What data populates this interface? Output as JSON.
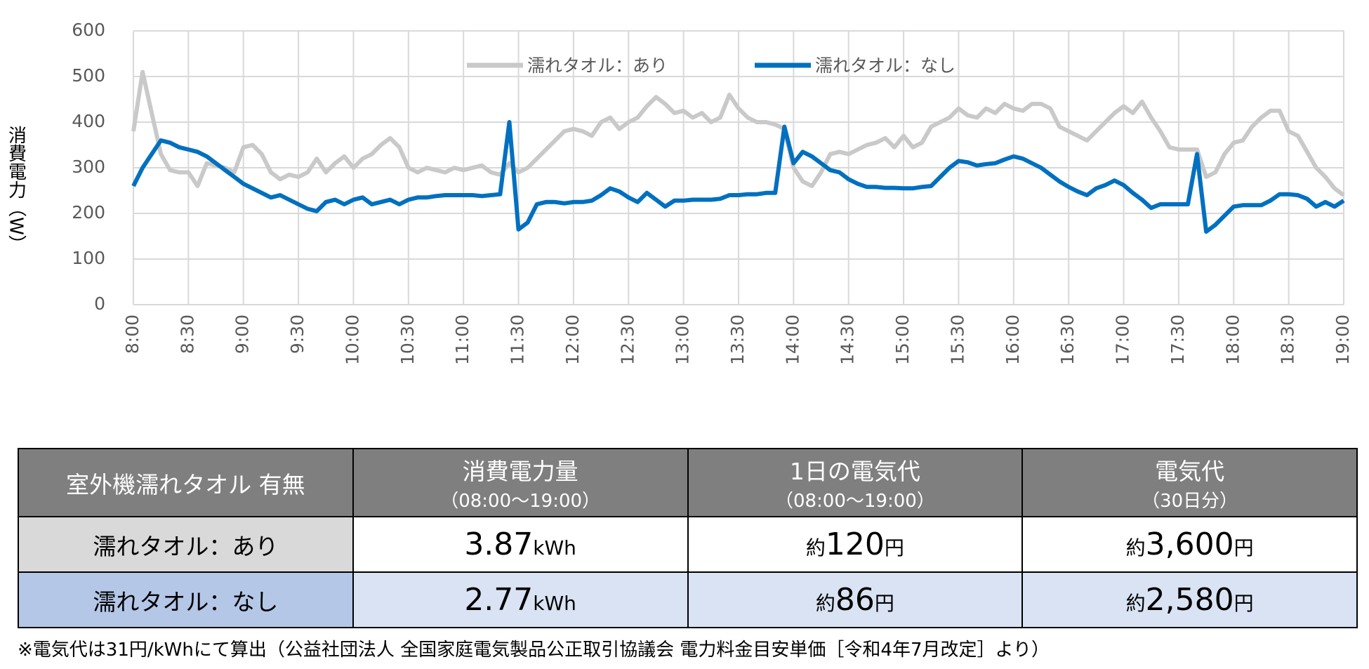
{
  "chart_data": {
    "type": "line",
    "y_label": "消費電力（W）",
    "categories": [
      "8:00",
      null,
      null,
      null,
      null,
      null,
      "8:30",
      null,
      null,
      null,
      null,
      null,
      "9:00",
      null,
      null,
      null,
      null,
      null,
      "9:30",
      null,
      null,
      null,
      null,
      null,
      "10:00",
      null,
      null,
      null,
      null,
      null,
      "10:30",
      null,
      null,
      null,
      null,
      null,
      "11:00",
      null,
      null,
      null,
      null,
      null,
      "11:30",
      null,
      null,
      null,
      null,
      null,
      "12:00",
      null,
      null,
      null,
      null,
      null,
      "12:30",
      null,
      null,
      null,
      null,
      null,
      "13:00",
      null,
      null,
      null,
      null,
      null,
      "13:30",
      null,
      null,
      null,
      null,
      null,
      "14:00",
      null,
      null,
      null,
      null,
      null,
      "14:30",
      null,
      null,
      null,
      null,
      null,
      "15:00",
      null,
      null,
      null,
      null,
      null,
      "15:30",
      null,
      null,
      null,
      null,
      null,
      "16:00",
      null,
      null,
      null,
      null,
      null,
      "16:30",
      null,
      null,
      null,
      null,
      null,
      "17:00",
      null,
      null,
      null,
      null,
      null,
      "17:30",
      null,
      null,
      null,
      null,
      null,
      "18:00",
      null,
      null,
      null,
      null,
      null,
      "18:30",
      null,
      null,
      null,
      null,
      null,
      "19:00"
    ],
    "series": [
      {
        "name": "濡れタオル：あり",
        "color": "#c9c9c9",
        "values": [
          380,
          510,
          420,
          330,
          295,
          290,
          290,
          260,
          310,
          305,
          300,
          290,
          345,
          350,
          330,
          290,
          275,
          285,
          280,
          290,
          320,
          290,
          310,
          325,
          300,
          320,
          330,
          350,
          365,
          345,
          300,
          290,
          300,
          295,
          290,
          300,
          295,
          300,
          305,
          290,
          285,
          310,
          290,
          300,
          320,
          340,
          360,
          380,
          385,
          380,
          370,
          400,
          410,
          385,
          400,
          410,
          435,
          455,
          440,
          420,
          425,
          410,
          420,
          400,
          410,
          460,
          430,
          410,
          400,
          400,
          395,
          385,
          300,
          270,
          260,
          290,
          330,
          335,
          330,
          340,
          350,
          355,
          365,
          345,
          370,
          345,
          355,
          390,
          400,
          410,
          430,
          415,
          410,
          430,
          420,
          440,
          430,
          425,
          440,
          440,
          430,
          390,
          380,
          370,
          360,
          380,
          400,
          420,
          435,
          420,
          445,
          410,
          380,
          345,
          340,
          340,
          340,
          280,
          290,
          330,
          355,
          360,
          390,
          410,
          425,
          425,
          380,
          370,
          335,
          300,
          280,
          255,
          240
        ]
      },
      {
        "name": "濡れタオル：なし",
        "color": "#0070c0",
        "values": [
          260,
          300,
          330,
          360,
          355,
          345,
          340,
          335,
          325,
          310,
          295,
          280,
          265,
          255,
          245,
          235,
          240,
          230,
          220,
          210,
          205,
          225,
          230,
          220,
          230,
          235,
          220,
          225,
          230,
          220,
          230,
          235,
          235,
          238,
          240,
          240,
          240,
          240,
          238,
          240,
          242,
          400,
          165,
          180,
          220,
          225,
          225,
          222,
          225,
          225,
          228,
          240,
          255,
          248,
          235,
          225,
          245,
          230,
          215,
          228,
          228,
          230,
          230,
          230,
          232,
          240,
          240,
          242,
          242,
          245,
          245,
          390,
          310,
          335,
          325,
          310,
          295,
          290,
          275,
          265,
          258,
          258,
          256,
          256,
          255,
          255,
          258,
          260,
          280,
          300,
          315,
          312,
          305,
          308,
          310,
          318,
          325,
          320,
          310,
          300,
          285,
          270,
          258,
          248,
          240,
          255,
          262,
          272,
          262,
          245,
          230,
          212,
          220,
          220,
          220,
          220,
          330,
          160,
          175,
          195,
          215,
          218,
          218,
          218,
          228,
          242,
          242,
          240,
          232,
          215,
          225,
          215,
          228
        ]
      }
    ],
    "ylim": [
      0,
      600
    ],
    "yticks": [
      0,
      100,
      200,
      300,
      400,
      500,
      600
    ],
    "grid": true,
    "legend": "top"
  },
  "table": {
    "header": [
      "室外機濡れタオル 有無",
      {
        "title": "消費電力量",
        "sub": "（08:00～19:00）"
      },
      {
        "title": "1日の電気代",
        "sub": "（08:00～19:00）"
      },
      {
        "title": "電気代",
        "sub": "（30日分）"
      }
    ],
    "rows": [
      {
        "label": "濡れタオル：あり",
        "cells": [
          {
            "value": "3.87",
            "unit": "kWh"
          },
          {
            "prefix": "約",
            "value": "120",
            "unit": "円"
          },
          {
            "prefix": "約",
            "value": "3,600",
            "unit": "円"
          }
        ]
      },
      {
        "label": "濡れタオル：なし",
        "cells": [
          {
            "value": "2.77",
            "unit": "kWh"
          },
          {
            "prefix": "約",
            "value": "86",
            "unit": "円"
          },
          {
            "prefix": "約",
            "value": "2,580",
            "unit": "円"
          }
        ]
      }
    ]
  },
  "note": "※電気代は31円/kWhにて算出（公益社団法人 全国家庭電気製品公正取引協議会 電力料金目安単価［令和4年7月改定］より）"
}
